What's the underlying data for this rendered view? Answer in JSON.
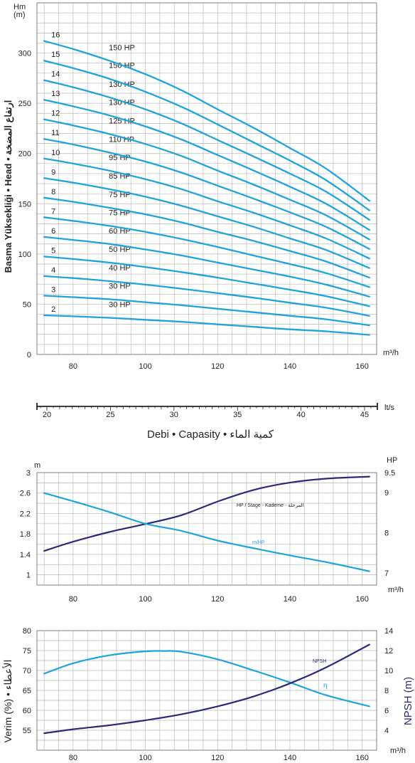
{
  "colors": {
    "curve": "#1fa3dc",
    "curve_dark": "#2b2a7a",
    "grid": "#b9b9b9",
    "frame": "#7f7f7f",
    "stage_label": "#e02020",
    "text": "#222222"
  },
  "chart_data": [
    {
      "type": "line",
      "id": "head",
      "grid": true,
      "x_unit": "m³/h",
      "y_unit": "Hm\n(m)",
      "ylabel": "Basma Yüksekliği • Head • ارتفاع المضخة",
      "xlim": [
        70,
        164
      ],
      "ylim": [
        0,
        350
      ],
      "xticks": [
        80,
        100,
        120,
        140,
        160
      ],
      "yticks": [
        0,
        50,
        100,
        150,
        200,
        250,
        300
      ],
      "x": [
        72,
        80,
        90,
        100,
        110,
        120,
        130,
        140,
        150,
        162
      ],
      "series": [
        {
          "name": "2",
          "power": "30 HP",
          "values": [
            39,
            38,
            36.5,
            34.5,
            32.5,
            30,
            27.5,
            25,
            23,
            19.5
          ]
        },
        {
          "name": "3",
          "power": "30 HP",
          "values": [
            58.5,
            57,
            55,
            52,
            49,
            45.5,
            42,
            38.5,
            35,
            29
          ]
        },
        {
          "name": "4",
          "power": "40 HP",
          "values": [
            78,
            76,
            73,
            69.5,
            65.5,
            61,
            56.5,
            51.5,
            46.5,
            38.5
          ]
        },
        {
          "name": "5",
          "power": "50 HP",
          "values": [
            97.5,
            95,
            91.5,
            87,
            82,
            76.5,
            70.5,
            64.5,
            58,
            48
          ]
        },
        {
          "name": "6",
          "power": "60 HP",
          "values": [
            117,
            114,
            110,
            104.5,
            98.5,
            91.5,
            84.5,
            77.5,
            69.5,
            57.5
          ]
        },
        {
          "name": "7",
          "power": "75 HP",
          "values": [
            136.5,
            133,
            128,
            122,
            115,
            107,
            98.5,
            90,
            81,
            67
          ]
        },
        {
          "name": "8",
          "power": "75 HP",
          "values": [
            156,
            152,
            146,
            139.5,
            131.5,
            122,
            113,
            103,
            92.5,
            76.5
          ]
        },
        {
          "name": "9",
          "power": "85 HP",
          "values": [
            175.5,
            171,
            164.5,
            157,
            148,
            137.5,
            127,
            115.5,
            104,
            86
          ]
        },
        {
          "name": "10",
          "power": "95 HP",
          "values": [
            195,
            190,
            183,
            174.5,
            164.5,
            152.5,
            141,
            128.5,
            115.5,
            95.5
          ]
        },
        {
          "name": "11",
          "power": "110 HP",
          "values": [
            214.5,
            209,
            201,
            192,
            181,
            168,
            155,
            141.5,
            127,
            105
          ]
        },
        {
          "name": "12",
          "power": "125 HP",
          "values": [
            234,
            228,
            219.5,
            209.5,
            197.5,
            183,
            169,
            154,
            138.5,
            114.5
          ]
        },
        {
          "name": "13",
          "power": "130 HP",
          "values": [
            253.5,
            247,
            238,
            227,
            214,
            198.5,
            183,
            167,
            150,
            124
          ]
        },
        {
          "name": "14",
          "power": "130 HP",
          "values": [
            273,
            266,
            256,
            244,
            230,
            213.5,
            197,
            180,
            162,
            134
          ]
        },
        {
          "name": "15",
          "power": "150 HP",
          "values": [
            292.5,
            285,
            274.5,
            261.5,
            246.5,
            229,
            211,
            193,
            173.5,
            143.5
          ]
        },
        {
          "name": "16",
          "power": "150 HP",
          "values": [
            312,
            304,
            292.5,
            279,
            263,
            244,
            225.5,
            205.5,
            185,
            153
          ]
        }
      ]
    },
    {
      "type": "line",
      "id": "lts-scale",
      "x_unit": "lt/s",
      "xticks": [
        20,
        25,
        30,
        35,
        40,
        45
      ],
      "xlabel": "Debi • Capasity • كمية الماء"
    },
    {
      "type": "line",
      "id": "power",
      "grid": true,
      "x_unit": "m³/h",
      "y_unit_left": "m",
      "y_unit_right": "HP",
      "xlim": [
        70,
        164
      ],
      "xticks": [
        80,
        100,
        120,
        140,
        160
      ],
      "y_left_lim": [
        0.8,
        3
      ],
      "y_left_ticks": [
        1,
        1.4,
        1.8,
        2.2,
        2.6,
        3
      ],
      "y_right_lim": [
        6.7,
        9.5
      ],
      "y_right_ticks": [
        7,
        8,
        9,
        9.5
      ],
      "annotations": [
        "HP / Stage - Kademe - المرحلة",
        "m/HP"
      ],
      "series": [
        {
          "name": "HP / Stage - Kademe - المرحلة",
          "axis": "right",
          "color": "curve_dark",
          "x": [
            72,
            80,
            90,
            100,
            110,
            120,
            130,
            140,
            150,
            162
          ],
          "values": [
            7.55,
            7.78,
            8.02,
            8.22,
            8.44,
            8.78,
            9.07,
            9.25,
            9.35,
            9.4
          ]
        },
        {
          "name": "m/HP",
          "axis": "left",
          "color": "curve",
          "x": [
            72,
            80,
            90,
            100,
            110,
            120,
            130,
            140,
            150,
            162
          ],
          "values": [
            2.6,
            2.44,
            2.23,
            2.0,
            1.86,
            1.67,
            1.52,
            1.38,
            1.25,
            1.07
          ]
        }
      ]
    },
    {
      "type": "line",
      "id": "efficiency",
      "grid": true,
      "x_unit": "m³/h",
      "ylabel_left": "Verim (%) • الأعطاء",
      "ylabel_right": "NPSH (m)",
      "xlim": [
        70,
        164
      ],
      "xticks": [
        80,
        100,
        120,
        140,
        160
      ],
      "y_left_lim": [
        50,
        80
      ],
      "y_left_ticks": [
        55,
        60,
        65,
        70,
        75,
        80
      ],
      "y_right_lim": [
        2,
        14
      ],
      "y_right_ticks": [
        4,
        6,
        8,
        10,
        12,
        14
      ],
      "annotations": [
        "NPSH",
        "η"
      ],
      "series": [
        {
          "name": "η",
          "axis": "left",
          "color": "curve",
          "x": [
            72,
            80,
            90,
            100,
            105,
            110,
            120,
            130,
            140,
            150,
            162
          ],
          "values": [
            69.2,
            71.8,
            73.8,
            74.8,
            74.9,
            74.7,
            72.8,
            70.0,
            67.0,
            63.8,
            61.0
          ]
        },
        {
          "name": "NPSH",
          "axis": "right",
          "color": "curve_dark",
          "x": [
            72,
            80,
            90,
            100,
            110,
            120,
            130,
            140,
            150,
            162
          ],
          "values": [
            3.7,
            4.1,
            4.5,
            5.0,
            5.6,
            6.4,
            7.4,
            8.7,
            10.3,
            12.6
          ]
        }
      ]
    }
  ]
}
